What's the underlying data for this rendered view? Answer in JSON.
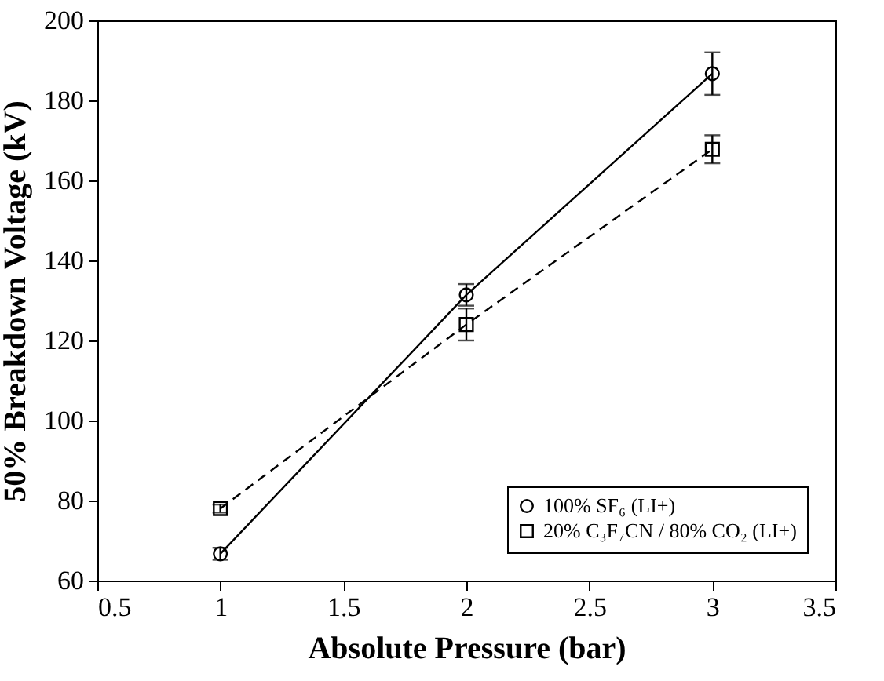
{
  "chart_data": {
    "type": "line",
    "xlabel": "Absolute Pressure (bar)",
    "ylabel": "50% Breakdown Voltage (kV)",
    "x": [
      1,
      2,
      3
    ],
    "series": [
      {
        "name": "100% SF₆ (LI+)",
        "color": "#000000",
        "values": [
          66.7,
          131.4,
          186.7
        ],
        "errors": [
          1.5,
          2.7,
          5.3
        ],
        "marker": "circle",
        "line_style": "solid"
      },
      {
        "name": "20% C₃F₇CN / 80% CO₂ (LI+)",
        "color": "#000000",
        "values": [
          78,
          124,
          167.8
        ],
        "errors": [
          1,
          4,
          3.5
        ],
        "marker": "square",
        "line_style": "dashed"
      }
    ],
    "xlim": [
      0.5,
      3.5
    ],
    "xticks": [
      0.5,
      1,
      1.5,
      2,
      2.5,
      3,
      3.5
    ],
    "ylim": [
      60,
      200
    ],
    "yticks": [
      60,
      80,
      100,
      120,
      140,
      160,
      180,
      200
    ],
    "grid": false,
    "legend": "bottom right"
  }
}
